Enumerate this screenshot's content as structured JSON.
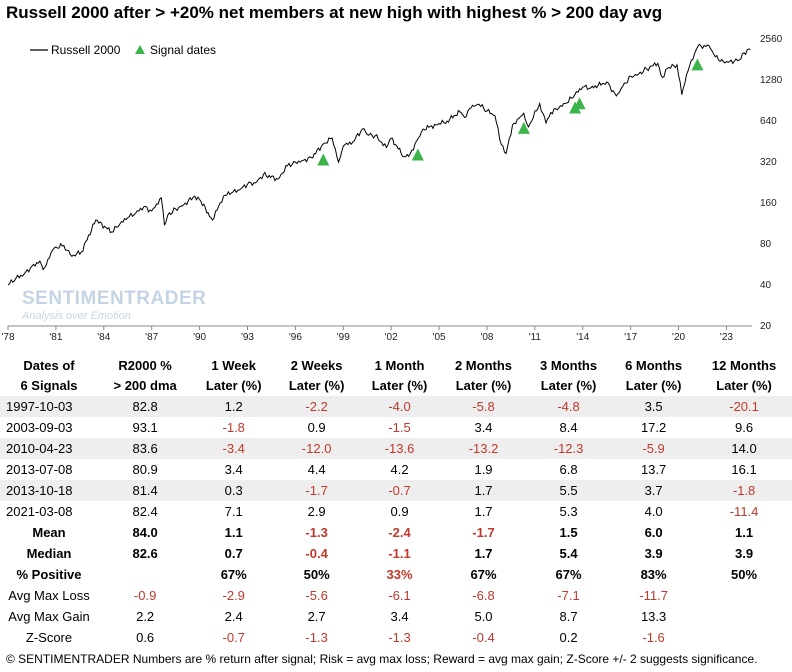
{
  "chart_data": {
    "type": "line",
    "title": "Russell 2000 after > +20% net members at new high with highest % > 200 day avg",
    "yscale": "log",
    "y_ticks": [
      20,
      40,
      80,
      160,
      320,
      640,
      1280,
      2560
    ],
    "x_ticks": [
      "'78",
      "'81",
      "'84",
      "'87",
      "'90",
      "'93",
      "'96",
      "'99",
      "'02",
      "'05",
      "'08",
      "'11",
      "'14",
      "'17",
      "'20",
      "'23"
    ],
    "xlim": [
      1978.0,
      2024.6
    ],
    "ylim": [
      20,
      2700
    ],
    "legend": {
      "placement": "top-left",
      "entries": [
        "Russell 2000",
        "Signal dates"
      ]
    },
    "series": [
      {
        "name": "Russell 2000",
        "color": "#000000",
        "x": [
          1978.0,
          1978.5,
          1979.0,
          1979.5,
          1980.0,
          1980.2,
          1980.9,
          1981.5,
          1982.0,
          1982.6,
          1983.5,
          1984.5,
          1985.0,
          1985.5,
          1986.0,
          1986.5,
          1987.0,
          1987.6,
          1987.8,
          1988.0,
          1988.5,
          1989.0,
          1989.7,
          1990.0,
          1990.8,
          1991.5,
          1992.0,
          1992.5,
          1993.0,
          1993.5,
          1994.0,
          1994.9,
          1995.5,
          1996.0,
          1996.5,
          1997.0,
          1997.8,
          1998.3,
          1998.7,
          1999.0,
          1999.6,
          2000.2,
          2000.5,
          2001.0,
          2001.7,
          2002.0,
          2002.8,
          2003.2,
          2003.7,
          2004.0,
          2004.8,
          2005.5,
          2006.3,
          2006.6,
          2007.0,
          2007.5,
          2008.0,
          2008.5,
          2008.9,
          2009.2,
          2009.6,
          2010.0,
          2010.3,
          2010.6,
          2011.3,
          2011.7,
          2012.0,
          2012.5,
          2013.0,
          2013.5,
          2014.0,
          2014.5,
          2015.5,
          2016.1,
          2016.5,
          2017.0,
          2017.5,
          2018.0,
          2018.7,
          2018.98,
          2019.3,
          2019.9,
          2020.2,
          2020.6,
          2021.0,
          2021.2,
          2021.9,
          2022.3,
          2022.8,
          2023.2,
          2023.8,
          2024.0,
          2024.5
        ],
        "values": [
          40,
          45,
          48,
          55,
          60,
          52,
          75,
          78,
          65,
          70,
          120,
          98,
          112,
          125,
          135,
          150,
          140,
          175,
          110,
          130,
          145,
          155,
          180,
          170,
          120,
          180,
          190,
          200,
          220,
          225,
          260,
          240,
          300,
          320,
          330,
          345,
          440,
          480,
          320,
          420,
          450,
          560,
          510,
          500,
          410,
          480,
          350,
          370,
          480,
          560,
          600,
          640,
          750,
          680,
          800,
          850,
          760,
          700,
          430,
          370,
          600,
          670,
          730,
          580,
          860,
          620,
          740,
          800,
          870,
          1000,
          1140,
          1120,
          1240,
          980,
          1150,
          1370,
          1420,
          1550,
          1700,
          1340,
          1560,
          1660,
          1000,
          1500,
          2000,
          2250,
          2300,
          1900,
          1750,
          1750,
          1800,
          2000,
          2150
        ]
      },
      {
        "name": "Signal dates",
        "color": "#3cb44b",
        "marker": "triangle",
        "x": [
          1997.75,
          2003.67,
          2010.31,
          2013.52,
          2013.8,
          2021.18
        ],
        "values": [
          340,
          370,
          580,
          820,
          880,
          1700
        ]
      }
    ]
  },
  "watermark": {
    "brand": "SENTIMENTRADER",
    "tagline": "Analysis over Emotion"
  },
  "table": {
    "headers": [
      [
        "Dates of",
        "6 Signals"
      ],
      [
        "R2000 %",
        "> 200 dma"
      ],
      [
        "1 Week",
        "Later (%)"
      ],
      [
        "2 Weeks",
        "Later (%)"
      ],
      [
        "1 Month",
        "Later (%)"
      ],
      [
        "2 Months",
        "Later (%)"
      ],
      [
        "3 Months",
        "Later (%)"
      ],
      [
        "6 Months",
        "Later (%)"
      ],
      [
        "12 Months",
        "Later (%)"
      ]
    ],
    "rows": [
      {
        "label": "1997-10-03",
        "shade": true,
        "bold": false,
        "cells": [
          {
            "v": "82.8",
            "n": false
          },
          {
            "v": "1.2",
            "n": false
          },
          {
            "v": "-2.2",
            "n": true
          },
          {
            "v": "-4.0",
            "n": true
          },
          {
            "v": "-5.8",
            "n": true
          },
          {
            "v": "-4.8",
            "n": true
          },
          {
            "v": "3.5",
            "n": false
          },
          {
            "v": "-20.1",
            "n": true
          }
        ]
      },
      {
        "label": "2003-09-03",
        "shade": false,
        "bold": false,
        "cells": [
          {
            "v": "93.1",
            "n": false
          },
          {
            "v": "-1.8",
            "n": true
          },
          {
            "v": "0.9",
            "n": false
          },
          {
            "v": "-1.5",
            "n": true
          },
          {
            "v": "3.4",
            "n": false
          },
          {
            "v": "8.4",
            "n": false
          },
          {
            "v": "17.2",
            "n": false
          },
          {
            "v": "9.6",
            "n": false
          }
        ]
      },
      {
        "label": "2010-04-23",
        "shade": true,
        "bold": false,
        "cells": [
          {
            "v": "83.6",
            "n": false
          },
          {
            "v": "-3.4",
            "n": true
          },
          {
            "v": "-12.0",
            "n": true
          },
          {
            "v": "-13.6",
            "n": true
          },
          {
            "v": "-13.2",
            "n": true
          },
          {
            "v": "-12.3",
            "n": true
          },
          {
            "v": "-5.9",
            "n": true
          },
          {
            "v": "14.0",
            "n": false
          }
        ]
      },
      {
        "label": "2013-07-08",
        "shade": false,
        "bold": false,
        "cells": [
          {
            "v": "80.9",
            "n": false
          },
          {
            "v": "3.4",
            "n": false
          },
          {
            "v": "4.4",
            "n": false
          },
          {
            "v": "4.2",
            "n": false
          },
          {
            "v": "1.9",
            "n": false
          },
          {
            "v": "6.8",
            "n": false
          },
          {
            "v": "13.7",
            "n": false
          },
          {
            "v": "16.1",
            "n": false
          }
        ]
      },
      {
        "label": "2013-10-18",
        "shade": true,
        "bold": false,
        "cells": [
          {
            "v": "81.4",
            "n": false
          },
          {
            "v": "0.3",
            "n": false
          },
          {
            "v": "-1.7",
            "n": true
          },
          {
            "v": "-0.7",
            "n": true
          },
          {
            "v": "1.7",
            "n": false
          },
          {
            "v": "5.5",
            "n": false
          },
          {
            "v": "3.7",
            "n": false
          },
          {
            "v": "-1.8",
            "n": true
          }
        ]
      },
      {
        "label": "2021-03-08",
        "shade": false,
        "bold": false,
        "cells": [
          {
            "v": "82.4",
            "n": false
          },
          {
            "v": "7.1",
            "n": false
          },
          {
            "v": "2.9",
            "n": false
          },
          {
            "v": "0.9",
            "n": false
          },
          {
            "v": "1.7",
            "n": false
          },
          {
            "v": "5.3",
            "n": false
          },
          {
            "v": "4.0",
            "n": false
          },
          {
            "v": "-11.4",
            "n": true
          }
        ]
      },
      {
        "label": "Mean",
        "shade": false,
        "bold": true,
        "center": true,
        "cells": [
          {
            "v": "84.0",
            "n": false
          },
          {
            "v": "1.1",
            "n": false
          },
          {
            "v": "-1.3",
            "n": true
          },
          {
            "v": "-2.4",
            "n": true
          },
          {
            "v": "-1.7",
            "n": true
          },
          {
            "v": "1.5",
            "n": false
          },
          {
            "v": "6.0",
            "n": false
          },
          {
            "v": "1.1",
            "n": false
          }
        ]
      },
      {
        "label": "Median",
        "shade": false,
        "bold": true,
        "center": true,
        "cells": [
          {
            "v": "82.6",
            "n": false
          },
          {
            "v": "0.7",
            "n": false
          },
          {
            "v": "-0.4",
            "n": true
          },
          {
            "v": "-1.1",
            "n": true
          },
          {
            "v": "1.7",
            "n": false
          },
          {
            "v": "5.4",
            "n": false
          },
          {
            "v": "3.9",
            "n": false
          },
          {
            "v": "3.9",
            "n": false
          }
        ]
      },
      {
        "label": "% Positive",
        "shade": false,
        "bold": true,
        "center": true,
        "cells": [
          {
            "v": "",
            "n": false
          },
          {
            "v": "67%",
            "n": false
          },
          {
            "v": "50%",
            "n": false
          },
          {
            "v": "33%",
            "n": true
          },
          {
            "v": "67%",
            "n": false
          },
          {
            "v": "67%",
            "n": false
          },
          {
            "v": "83%",
            "n": false
          },
          {
            "v": "50%",
            "n": false
          }
        ]
      },
      {
        "label": "Avg Max Loss",
        "shade": false,
        "bold": false,
        "center": true,
        "cells": [
          {
            "v": "-0.9",
            "n": true
          },
          {
            "v": "-2.9",
            "n": true
          },
          {
            "v": "-5.6",
            "n": true
          },
          {
            "v": "-6.1",
            "n": true
          },
          {
            "v": "-6.8",
            "n": true
          },
          {
            "v": "-7.1",
            "n": true
          },
          {
            "v": "-11.7",
            "n": true
          },
          {
            "v": "",
            "n": false
          }
        ],
        "shift": true
      },
      {
        "label": "Avg Max Gain",
        "shade": false,
        "bold": false,
        "center": true,
        "cells": [
          {
            "v": "2.2",
            "n": false
          },
          {
            "v": "2.4",
            "n": false
          },
          {
            "v": "2.7",
            "n": false
          },
          {
            "v": "3.4",
            "n": false
          },
          {
            "v": "5.0",
            "n": false
          },
          {
            "v": "8.7",
            "n": false
          },
          {
            "v": "13.3",
            "n": false
          },
          {
            "v": "",
            "n": false
          }
        ],
        "shift": true
      },
      {
        "label": "Z-Score",
        "shade": false,
        "bold": false,
        "center": true,
        "cells": [
          {
            "v": "0.6",
            "n": false
          },
          {
            "v": "-0.7",
            "n": true
          },
          {
            "v": "-1.3",
            "n": true
          },
          {
            "v": "-1.3",
            "n": true
          },
          {
            "v": "-0.4",
            "n": true
          },
          {
            "v": "0.2",
            "n": false
          },
          {
            "v": "-1.6",
            "n": true
          },
          {
            "v": "",
            "n": false
          }
        ],
        "shift": true
      }
    ]
  },
  "footer": "© SENTIMENTRADER  Numbers are % return after signal; Risk = avg max loss; Reward = avg max gain; Z-Score +/- 2 suggests significance.",
  "colors": {
    "negative": "#c0392b",
    "shade": "#eeeeee",
    "signal": "#3cb44b"
  }
}
